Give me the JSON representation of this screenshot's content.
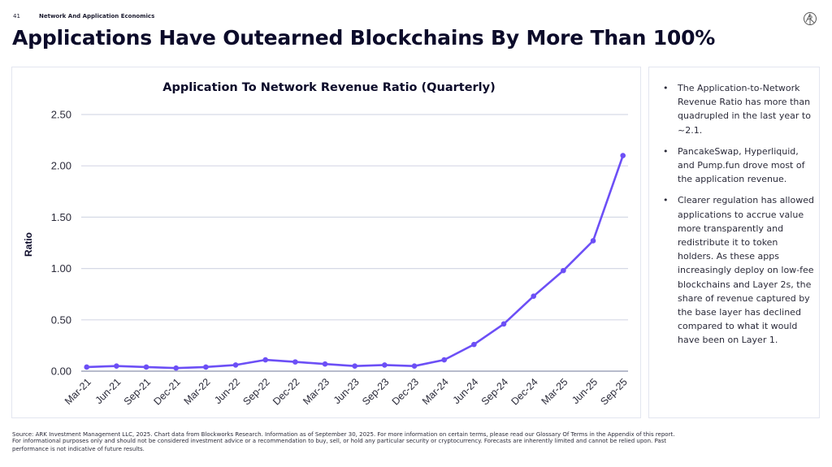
{
  "header": {
    "page_number": "41",
    "section": "Network And Application Economics",
    "title": "Applications Have Outearned Blockchains By More Than 100%",
    "logo_icon": "ark-logo-icon"
  },
  "colors": {
    "line": "#6c4ff6",
    "grid": "#d6d9e6",
    "axis": "#b7bbcc",
    "title": "#0c0b2a",
    "panel_border": "#e3e6f0"
  },
  "chart_data": {
    "type": "line",
    "title": "Application To Network Revenue Ratio (Quarterly)",
    "xlabel": "",
    "ylabel": "Ratio",
    "ylim": [
      0,
      2.5
    ],
    "yticks": [
      "0.00",
      "0.50",
      "1.00",
      "1.50",
      "2.00",
      "2.50"
    ],
    "ytick_values": [
      0,
      0.5,
      1.0,
      1.5,
      2.0,
      2.5
    ],
    "grid": true,
    "legend": "none",
    "categories": [
      "Mar-21",
      "Jun-21",
      "Sep-21",
      "Dec-21",
      "Mar-22",
      "Jun-22",
      "Sep-22",
      "Dec-22",
      "Mar-23",
      "Jun-23",
      "Sep-23",
      "Dec-23",
      "Mar-24",
      "Jun-24",
      "Sep-24",
      "Dec-24",
      "Mar-25",
      "Jun-25",
      "Sep-25"
    ],
    "series": [
      {
        "name": "Application To Network Revenue Ratio",
        "values": [
          0.04,
          0.05,
          0.04,
          0.03,
          0.04,
          0.06,
          0.11,
          0.09,
          0.07,
          0.05,
          0.06,
          0.05,
          0.11,
          0.26,
          0.46,
          0.73,
          0.98,
          1.27,
          2.1
        ]
      }
    ]
  },
  "sidebar": {
    "bullets": [
      "The Application-to-Network Revenue Ratio has more than quadrupled in the last year to ~2.1.",
      "PancakeSwap, Hyperliquid, and Pump.fun drove most of the application revenue.",
      "Clearer regulation has allowed applications to accrue value more transparently and redistribute it to token holders. As these apps increasingly deploy on low-fee blockchains and Layer 2s, the share of revenue captured by the base layer has declined compared to what it would have been on Layer 1."
    ]
  },
  "footer": {
    "line1": "Source: ARK Investment Management LLC, 2025. Chart data from Blockworks Research. Information as of September 30, 2025. For more information on certain terms, please read our Glossary Of Terms in the Appendix of this report.",
    "line2": "For informational purposes only and should not be considered investment advice or a recommendation to buy, sell, or hold any particular security or cryptocurrency. Forecasts are inherently limited and cannot be relied upon. Past",
    "line3": "performance is not indicative of future results."
  }
}
